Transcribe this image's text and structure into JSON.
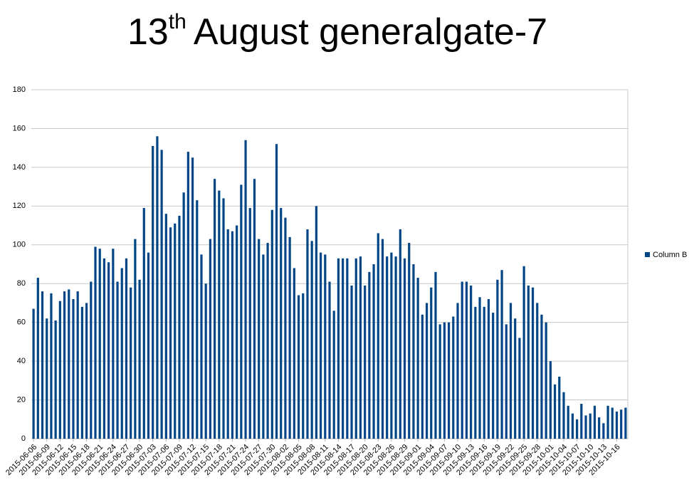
{
  "chart_data": {
    "type": "bar",
    "title": {
      "number": "13",
      "suffix": "th",
      "rest": "August generalgate-7"
    },
    "categories": [
      "2015-06-06",
      null,
      null,
      "2015-06-09",
      null,
      null,
      "2015-06-12",
      null,
      null,
      "2015-06-15",
      null,
      null,
      "2015-06-18",
      null,
      null,
      "2015-06-21",
      null,
      null,
      "2015-06-24",
      null,
      null,
      "2015-06-27",
      null,
      null,
      "2015-06-30",
      null,
      null,
      "2015-07-03",
      null,
      null,
      "2015-07-06",
      null,
      null,
      "2015-07-09",
      null,
      null,
      "2015-07-12",
      null,
      null,
      "2015-07-15",
      null,
      null,
      "2015-07-18",
      null,
      null,
      "2015-07-21",
      null,
      null,
      "2015-07-24",
      null,
      null,
      "2015-07-27",
      null,
      null,
      "2015-07-30",
      null,
      null,
      "2015-08-02",
      null,
      null,
      "2015-08-05",
      null,
      null,
      "2015-08-08",
      null,
      null,
      "2015-08-11",
      null,
      null,
      "2015-08-14",
      null,
      null,
      "2015-08-17",
      null,
      null,
      "2015-08-20",
      null,
      null,
      "2015-08-23",
      null,
      null,
      "2015-08-26",
      null,
      null,
      "2015-08-29",
      null,
      null,
      "2015-09-01",
      null,
      null,
      "2015-09-04",
      null,
      null,
      "2015-09-07",
      null,
      null,
      "2015-09-10",
      null,
      null,
      "2015-09-13",
      null,
      null,
      "2015-09-16",
      null,
      null,
      "2015-09-19",
      null,
      null,
      "2015-09-22",
      null,
      null,
      "2015-09-25",
      null,
      null,
      "2015-09-28",
      null,
      null,
      "2015-10-01",
      null,
      null,
      "2015-10-04",
      null,
      null,
      "2015-10-07",
      null,
      null,
      "2015-10-10",
      null,
      null,
      "2015-10-13",
      null,
      null,
      "2015-10-16",
      null,
      null
    ],
    "series": [
      {
        "name": "Column B",
        "color": "#004586",
        "values": [
          67,
          83,
          76,
          62,
          75,
          61,
          71,
          76,
          77,
          72,
          76,
          68,
          70,
          81,
          99,
          98,
          93,
          91,
          98,
          81,
          88,
          93,
          78,
          103,
          82,
          119,
          96,
          151,
          156,
          149,
          116,
          109,
          111,
          115,
          127,
          148,
          145,
          123,
          95,
          80,
          103,
          134,
          128,
          124,
          108,
          107,
          110,
          131,
          154,
          119,
          134,
          103,
          95,
          101,
          118,
          152,
          119,
          114,
          104,
          88,
          74,
          75,
          108,
          102,
          120,
          96,
          95,
          81,
          66,
          93,
          93,
          93,
          79,
          93,
          94,
          79,
          86,
          90,
          106,
          103,
          94,
          96,
          94,
          108,
          93,
          101,
          90,
          83,
          64,
          70,
          78,
          86,
          59,
          60,
          60,
          63,
          70,
          81,
          81,
          79,
          68,
          73,
          68,
          72,
          65,
          82,
          87,
          59,
          70,
          62,
          52,
          89,
          79,
          78,
          70,
          64,
          60,
          40,
          28,
          32,
          24,
          17,
          13,
          10,
          18,
          12,
          13,
          17,
          11,
          8,
          17,
          16,
          14,
          15,
          16
        ]
      }
    ],
    "ylim": [
      0,
      180
    ],
    "yticks": [
      0,
      20,
      40,
      60,
      80,
      100,
      120,
      140,
      160,
      180
    ],
    "grid": true,
    "legend": "right"
  }
}
